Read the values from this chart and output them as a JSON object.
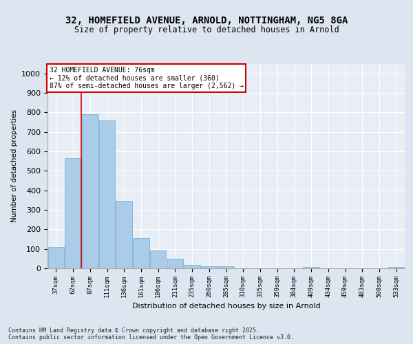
{
  "title_line1": "32, HOMEFIELD AVENUE, ARNOLD, NOTTINGHAM, NG5 8GA",
  "title_line2": "Size of property relative to detached houses in Arnold",
  "xlabel": "Distribution of detached houses by size in Arnold",
  "ylabel": "Number of detached properties",
  "bins": [
    "37sqm",
    "62sqm",
    "87sqm",
    "111sqm",
    "136sqm",
    "161sqm",
    "186sqm",
    "211sqm",
    "235sqm",
    "260sqm",
    "285sqm",
    "310sqm",
    "335sqm",
    "359sqm",
    "384sqm",
    "409sqm",
    "434sqm",
    "459sqm",
    "483sqm",
    "508sqm",
    "533sqm"
  ],
  "values": [
    110,
    565,
    790,
    760,
    345,
    155,
    93,
    48,
    18,
    12,
    10,
    0,
    0,
    0,
    0,
    7,
    0,
    0,
    0,
    0,
    7
  ],
  "bar_color": "#aacce8",
  "bar_edge_color": "#6aaad4",
  "vline_color": "#cc0000",
  "vline_x": 1.5,
  "annotation_title": "32 HOMEFIELD AVENUE: 76sqm",
  "annotation_line1": "← 12% of detached houses are smaller (360)",
  "annotation_line2": "87% of semi-detached houses are larger (2,562) →",
  "annotation_box_edge": "#cc0000",
  "ylim": [
    0,
    1050
  ],
  "yticks": [
    0,
    100,
    200,
    300,
    400,
    500,
    600,
    700,
    800,
    900,
    1000
  ],
  "bg_color": "#dde6f0",
  "plot_bg_color": "#e8eef5",
  "grid_color": "#ffffff",
  "footer": "Contains HM Land Registry data © Crown copyright and database right 2025.\nContains public sector information licensed under the Open Government Licence v3.0."
}
